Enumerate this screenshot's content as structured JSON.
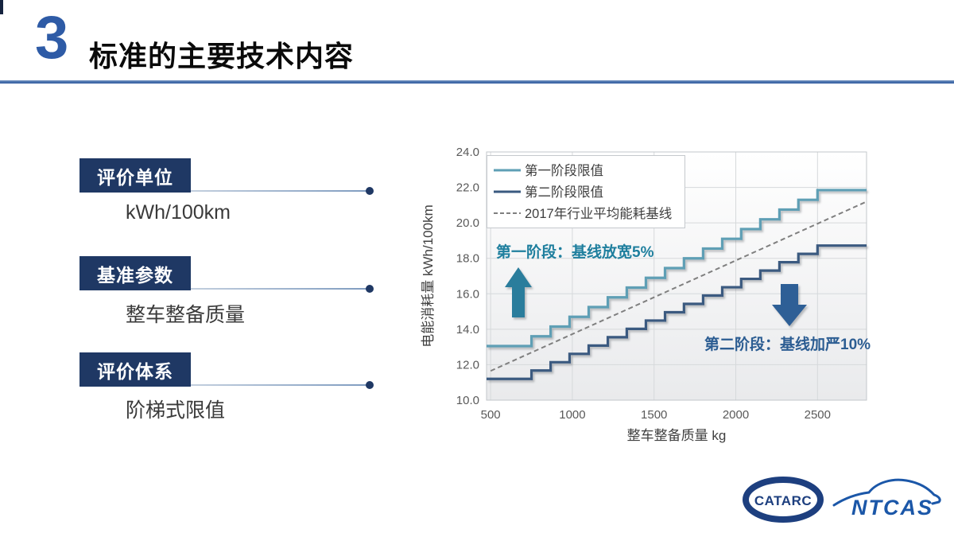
{
  "slide": {
    "number": "3",
    "title": "标准的主要技术内容"
  },
  "colors": {
    "header_blue": "#2e5ba6",
    "navy_box": "#1f3864",
    "stage1_line": "#5e9fb5",
    "stage2_line": "#3a5a80",
    "baseline_gray": "#7f7f7f",
    "annotation1": "#1f7f9e",
    "annotation2": "#2c5d92",
    "logo_blue": "#1d4f9e"
  },
  "left_panel": {
    "items": [
      {
        "label": "评价单位",
        "value": "kWh/100km"
      },
      {
        "label": "基准参数",
        "value": "整车整备质量"
      },
      {
        "label": "评价体系",
        "value": "阶梯式限值"
      }
    ]
  },
  "chart_data": {
    "type": "line",
    "title": "",
    "xlabel": "整车整备质量 kg",
    "ylabel": "电能消耗量 kWh/100km",
    "xlim": [
      475,
      2800
    ],
    "ylim": [
      10,
      24
    ],
    "x_ticks": [
      500,
      1000,
      1500,
      2000,
      2500
    ],
    "y_ticks": [
      10,
      12,
      14,
      16,
      18,
      20,
      22,
      24
    ],
    "grid": true,
    "legend_position": "top-left",
    "series": [
      {
        "name": "第一阶段限值",
        "style": "step",
        "color": "#5e9fb5",
        "step_edges": [
          750,
          867,
          983,
          1100,
          1217,
          1333,
          1450,
          1567,
          1683,
          1800,
          1917,
          2033,
          2150,
          2267,
          2383,
          2500
        ],
        "levels": [
          13.05,
          13.6,
          14.15,
          14.7,
          15.25,
          15.8,
          16.35,
          16.9,
          17.45,
          18.0,
          18.55,
          19.1,
          19.65,
          20.2,
          20.75,
          21.3,
          21.85
        ]
      },
      {
        "name": "第二阶段限值",
        "style": "step",
        "color": "#3a5a80",
        "step_edges": [
          750,
          867,
          983,
          1100,
          1217,
          1333,
          1450,
          1567,
          1683,
          1800,
          1917,
          2033,
          2150,
          2267,
          2383,
          2500
        ],
        "levels": [
          11.2,
          11.67,
          12.14,
          12.61,
          13.08,
          13.55,
          14.02,
          14.49,
          14.96,
          15.43,
          15.9,
          16.37,
          16.84,
          17.31,
          17.78,
          18.25,
          18.72
        ]
      },
      {
        "name": "2017年行业平均能耗基线",
        "style": "dashed",
        "color": "#7f7f7f",
        "points": [
          [
            500,
            11.65
          ],
          [
            2800,
            21.2
          ]
        ]
      }
    ],
    "annotations": [
      {
        "text": "第一阶段：基线放宽5%",
        "color": "#1f7f9e",
        "arrow": "up",
        "arrow_color": "#2c7d9c"
      },
      {
        "text": "第二阶段：基线加严10%",
        "color": "#2c5d92",
        "arrow": "down",
        "arrow_color": "#2f5f96"
      }
    ]
  },
  "footer": {
    "logos": [
      {
        "text": "CATARC"
      },
      {
        "text": "NTCAS"
      }
    ]
  }
}
